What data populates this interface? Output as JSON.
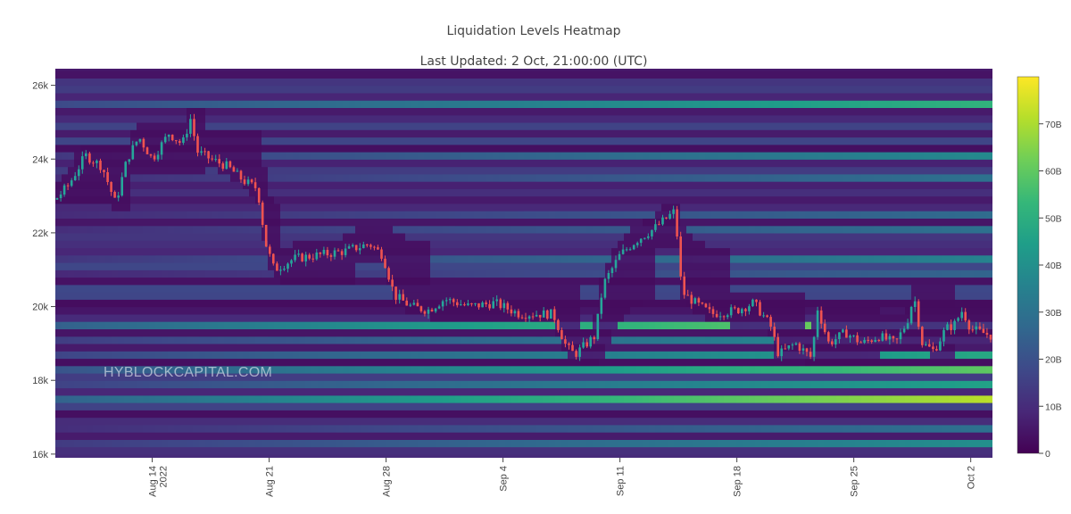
{
  "title": "Liquidation Levels Heatmap",
  "subtitle": "Last Updated: 2 Oct, 21:00:00 (UTC)",
  "watermark": "HYBLOCKCAPITAL.COM",
  "colors": {
    "scale": [
      "#440154",
      "#482878",
      "#3e4989",
      "#31688e",
      "#26828e",
      "#1f9e89",
      "#35b779",
      "#6ece58",
      "#b5de2b",
      "#fde725"
    ],
    "candle_up": "#26a69a",
    "candle_down": "#ef5350",
    "band_up_range_empty": "#3b0f4f"
  },
  "chart_data": {
    "type": "heatmap",
    "title": "Liquidation Levels Heatmap",
    "subtitle": "Last Updated: 2 Oct, 21:00:00 (UTC)",
    "x_ticks": [
      {
        "label": "Aug 14",
        "sublabel": "2022",
        "day": 0
      },
      {
        "label": "Aug 21",
        "sublabel": "",
        "day": 7
      },
      {
        "label": "Aug 28",
        "sublabel": "",
        "day": 14
      },
      {
        "label": "Sep 4",
        "sublabel": "",
        "day": 21
      },
      {
        "label": "Sep 11",
        "sublabel": "",
        "day": 28
      },
      {
        "label": "Sep 18",
        "sublabel": "",
        "day": 35
      },
      {
        "label": "Sep 25",
        "sublabel": "",
        "day": 42
      },
      {
        "label": "Oct 2",
        "sublabel": "",
        "day": 49
      }
    ],
    "x_range_days": [
      -5.8,
      50.3
    ],
    "y_ticks": [
      {
        "label": "16k",
        "value": 16000
      },
      {
        "label": "18k",
        "value": 18000
      },
      {
        "label": "20k",
        "value": 20000
      },
      {
        "label": "22k",
        "value": 22000
      },
      {
        "label": "24k",
        "value": 24000
      },
      {
        "label": "26k",
        "value": 26000
      }
    ],
    "y_range": [
      15900,
      26450
    ],
    "colorbar": {
      "min": 0,
      "max": 80,
      "ticks": [
        {
          "label": "0",
          "value": 0
        },
        {
          "label": "10B",
          "value": 10
        },
        {
          "label": "20B",
          "value": 20
        },
        {
          "label": "30B",
          "value": 30
        },
        {
          "label": "40B",
          "value": 40
        },
        {
          "label": "50B",
          "value": 50
        },
        {
          "label": "60B",
          "value": 60
        },
        {
          "label": "70B",
          "value": 70
        }
      ]
    },
    "price_path": [
      {
        "day": -5.8,
        "price": 22900
      },
      {
        "day": -5,
        "price": 23300
      },
      {
        "day": -4,
        "price": 24100
      },
      {
        "day": -3,
        "price": 23800
      },
      {
        "day": -2.2,
        "price": 22800
      },
      {
        "day": -1.5,
        "price": 24000
      },
      {
        "day": -0.8,
        "price": 24600
      },
      {
        "day": 0,
        "price": 24000
      },
      {
        "day": 1,
        "price": 24700
      },
      {
        "day": 1.8,
        "price": 24400
      },
      {
        "day": 2.3,
        "price": 25100
      },
      {
        "day": 2.7,
        "price": 24200
      },
      {
        "day": 3.5,
        "price": 24000
      },
      {
        "day": 4.5,
        "price": 23800
      },
      {
        "day": 5.5,
        "price": 23400
      },
      {
        "day": 6.3,
        "price": 23200
      },
      {
        "day": 6.8,
        "price": 21700
      },
      {
        "day": 7.3,
        "price": 21000
      },
      {
        "day": 8.5,
        "price": 21300
      },
      {
        "day": 10,
        "price": 21400
      },
      {
        "day": 11.5,
        "price": 21500
      },
      {
        "day": 13,
        "price": 21700
      },
      {
        "day": 13.8,
        "price": 21400
      },
      {
        "day": 14.5,
        "price": 20300
      },
      {
        "day": 15.5,
        "price": 20000
      },
      {
        "day": 16.5,
        "price": 19900
      },
      {
        "day": 17.5,
        "price": 20200
      },
      {
        "day": 19,
        "price": 20000
      },
      {
        "day": 20.5,
        "price": 20100
      },
      {
        "day": 22,
        "price": 19800
      },
      {
        "day": 24,
        "price": 19800
      },
      {
        "day": 24.8,
        "price": 18900
      },
      {
        "day": 25.3,
        "price": 18700
      },
      {
        "day": 26.5,
        "price": 19200
      },
      {
        "day": 27,
        "price": 20600
      },
      {
        "day": 28,
        "price": 21400
      },
      {
        "day": 29,
        "price": 21800
      },
      {
        "day": 30,
        "price": 22100
      },
      {
        "day": 30.8,
        "price": 22400
      },
      {
        "day": 31.3,
        "price": 22600
      },
      {
        "day": 31.7,
        "price": 20400
      },
      {
        "day": 32.5,
        "price": 20100
      },
      {
        "day": 33.5,
        "price": 19800
      },
      {
        "day": 35,
        "price": 19900
      },
      {
        "day": 36,
        "price": 20100
      },
      {
        "day": 37,
        "price": 19500
      },
      {
        "day": 37.5,
        "price": 18700
      },
      {
        "day": 38.5,
        "price": 19000
      },
      {
        "day": 39.5,
        "price": 18600
      },
      {
        "day": 39.8,
        "price": 20000
      },
      {
        "day": 40.5,
        "price": 19000
      },
      {
        "day": 41.5,
        "price": 19300
      },
      {
        "day": 42.5,
        "price": 19000
      },
      {
        "day": 43.5,
        "price": 19200
      },
      {
        "day": 44.5,
        "price": 19000
      },
      {
        "day": 45.2,
        "price": 19600
      },
      {
        "day": 45.6,
        "price": 20300
      },
      {
        "day": 46.1,
        "price": 19000
      },
      {
        "day": 46.8,
        "price": 18800
      },
      {
        "day": 47.5,
        "price": 19400
      },
      {
        "day": 48,
        "price": 19500
      },
      {
        "day": 48.5,
        "price": 19900
      },
      {
        "day": 49,
        "price": 19400
      },
      {
        "day": 50.3,
        "price": 19200
      }
    ],
    "bright_bands": [
      {
        "price": 25300,
        "value": 52
      },
      {
        "price": 23900,
        "value": 38
      },
      {
        "price": 23400,
        "value": 30
      },
      {
        "price": 22300,
        "value": 28
      },
      {
        "price": 21900,
        "value": 30
      },
      {
        "price": 21100,
        "value": 36
      },
      {
        "price": 20800,
        "value": 26
      },
      {
        "price": 19350,
        "value": 70
      },
      {
        "price": 18900,
        "value": 42
      },
      {
        "price": 18600,
        "value": 48
      },
      {
        "price": 18150,
        "value": 60
      },
      {
        "price": 17750,
        "value": 46
      },
      {
        "price": 17300,
        "value": 72
      },
      {
        "price": 16500,
        "value": 30
      },
      {
        "price": 16100,
        "value": 40
      }
    ]
  }
}
